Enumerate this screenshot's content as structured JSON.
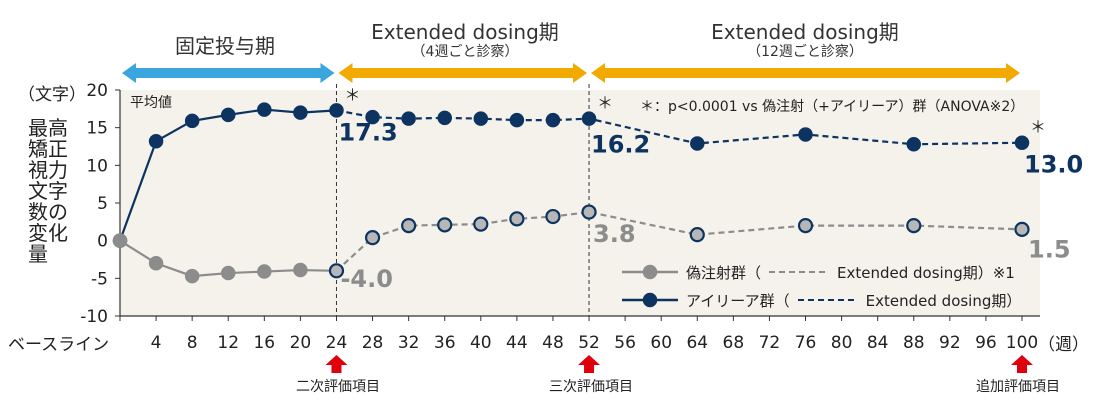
{
  "phases": [
    {
      "title": "固定投与期",
      "subtitle": "",
      "x_start": 0,
      "x_end": 24,
      "color": "#3aa6dd"
    },
    {
      "title": "Extended dosing期",
      "subtitle": "（4週ごと診察）",
      "x_start": 24,
      "x_end": 52,
      "color": "#f2a900"
    },
    {
      "title": "Extended dosing期",
      "subtitle": "（12週ごと診察）",
      "x_start": 52,
      "x_end": 100,
      "color": "#f2a900"
    }
  ],
  "y_unit_label": "（文字）",
  "y_axis_label": "最高矯正視力文字数の変化量",
  "avg_label": "平均値",
  "footnote": "＊：p<0.0001 vs 偽注射（+アイリーア）群（ANOVA※2）",
  "x_baseline_label": "ベースライン",
  "x_unit_label": "（週）",
  "eval_markers": [
    {
      "x": 24,
      "label": "二次評価項目"
    },
    {
      "x": 52,
      "label": "三次評価項目"
    },
    {
      "x": 100,
      "label": "追加評価項目"
    }
  ],
  "legend": [
    {
      "name": "偽注射群（",
      "suffix": "Extended dosing期）※1",
      "color": "#8c8c8c"
    },
    {
      "name": "アイリーア群（",
      "suffix": "Extended dosing期）",
      "color": "#0d3461"
    }
  ],
  "colors": {
    "eylea": "#0d3461",
    "sham": "#8c8c8c",
    "plot_bg": "#f4f2ea",
    "eval_arrow": "#e0000b"
  },
  "chart_data": {
    "type": "line",
    "xlabel": "",
    "ylabel": "最高矯正視力文字数の変化量",
    "ylim": [
      -10,
      20
    ],
    "yticks": [
      -10,
      -5,
      0,
      5,
      10,
      15,
      20
    ],
    "xticks": [
      0,
      4,
      8,
      12,
      16,
      20,
      24,
      28,
      32,
      36,
      40,
      44,
      48,
      52,
      56,
      60,
      64,
      68,
      72,
      76,
      80,
      84,
      88,
      92,
      96,
      100
    ],
    "grid": false,
    "series": [
      {
        "name": "アイリーア群",
        "x": [
          0,
          4,
          8,
          12,
          16,
          20,
          24,
          28,
          32,
          36,
          40,
          44,
          48,
          52,
          64,
          76,
          88,
          100
        ],
        "y": [
          0,
          13.2,
          15.9,
          16.7,
          17.4,
          17.0,
          17.3,
          16.4,
          16.2,
          16.3,
          16.2,
          16.0,
          16.0,
          16.2,
          12.9,
          14.1,
          12.8,
          13.0
        ],
        "dashed_from": 24
      },
      {
        "name": "偽注射群",
        "x": [
          0,
          4,
          8,
          12,
          16,
          20,
          24,
          28,
          32,
          36,
          40,
          44,
          48,
          52,
          64,
          76,
          88,
          100
        ],
        "y": [
          0,
          -3.0,
          -4.7,
          -4.3,
          -4.1,
          -3.9,
          -4.0,
          0.4,
          2.0,
          2.1,
          2.2,
          2.9,
          3.2,
          3.8,
          0.8,
          2.0,
          2.0,
          1.5
        ],
        "dashed_from": 24
      }
    ],
    "annotations": [
      {
        "series": 0,
        "x": 24,
        "text": "17.3"
      },
      {
        "series": 0,
        "x": 52,
        "text": "16.2"
      },
      {
        "series": 0,
        "x": 100,
        "text": "13.0"
      },
      {
        "series": 1,
        "x": 24,
        "text": "-4.0"
      },
      {
        "series": 1,
        "x": 52,
        "text": "3.8"
      },
      {
        "series": 1,
        "x": 100,
        "text": "1.5"
      }
    ],
    "significance_marks": [
      {
        "x": 24,
        "text": "＊"
      },
      {
        "x": 52,
        "text": "＊"
      },
      {
        "x": 100,
        "text": "＊"
      }
    ]
  }
}
